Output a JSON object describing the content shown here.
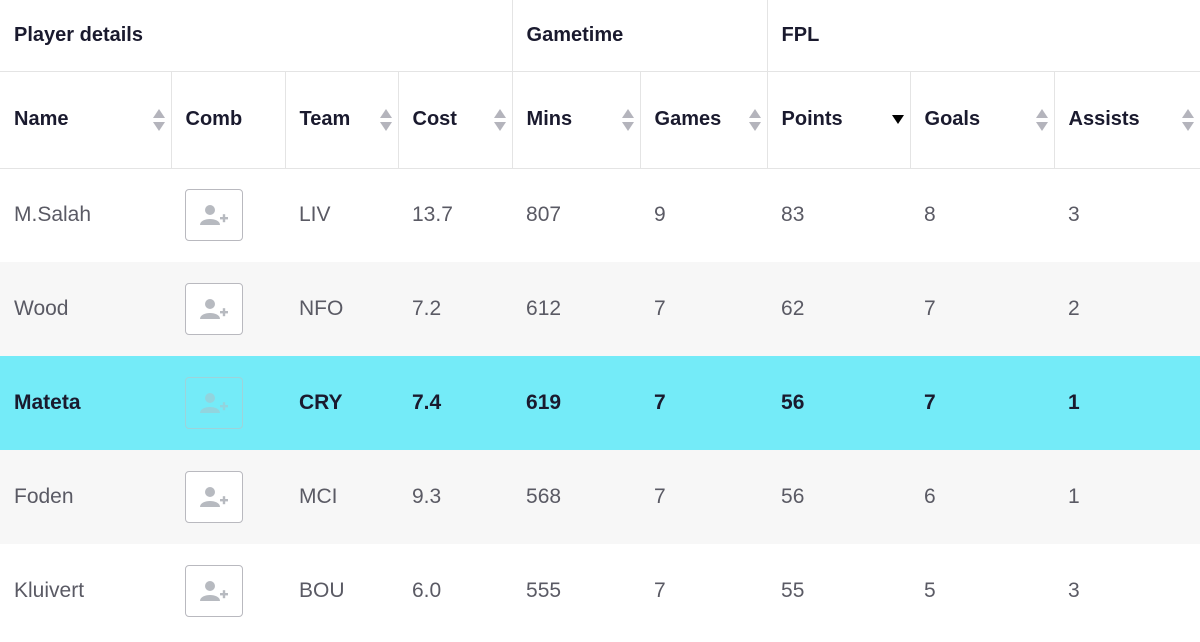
{
  "groups": {
    "player_details": "Player details",
    "gametime": "Gametime",
    "fpl": "FPL"
  },
  "columns": {
    "name": "Name",
    "comb": "Comb",
    "team": "Team",
    "cost": "Cost",
    "mins": "Mins",
    "games": "Games",
    "points": "Points",
    "goals": "Goals",
    "assists": "Assists"
  },
  "sort": {
    "column": "points",
    "direction": "descending"
  },
  "highlight_color": "#74ebf8",
  "rows": [
    {
      "name": "M.Salah",
      "team": "LIV",
      "cost": "13.7",
      "mins": "807",
      "games": "9",
      "points": "83",
      "goals": "8",
      "assists": "3",
      "comb_icon": "add-user-icon"
    },
    {
      "name": "Wood",
      "team": "NFO",
      "cost": "7.2",
      "mins": "612",
      "games": "7",
      "points": "62",
      "goals": "7",
      "assists": "2",
      "comb_icon": "add-user-icon"
    },
    {
      "name": "Mateta",
      "team": "CRY",
      "cost": "7.4",
      "mins": "619",
      "games": "7",
      "points": "56",
      "goals": "7",
      "assists": "1",
      "comb_icon": "add-user-icon",
      "highlighted": true
    },
    {
      "name": "Foden",
      "team": "MCI",
      "cost": "9.3",
      "mins": "568",
      "games": "7",
      "points": "56",
      "goals": "6",
      "assists": "1",
      "comb_icon": "add-user-icon"
    },
    {
      "name": "Kluivert",
      "team": "BOU",
      "cost": "6.0",
      "mins": "555",
      "games": "7",
      "points": "55",
      "goals": "5",
      "assists": "3",
      "comb_icon": "add-user-icon"
    }
  ]
}
